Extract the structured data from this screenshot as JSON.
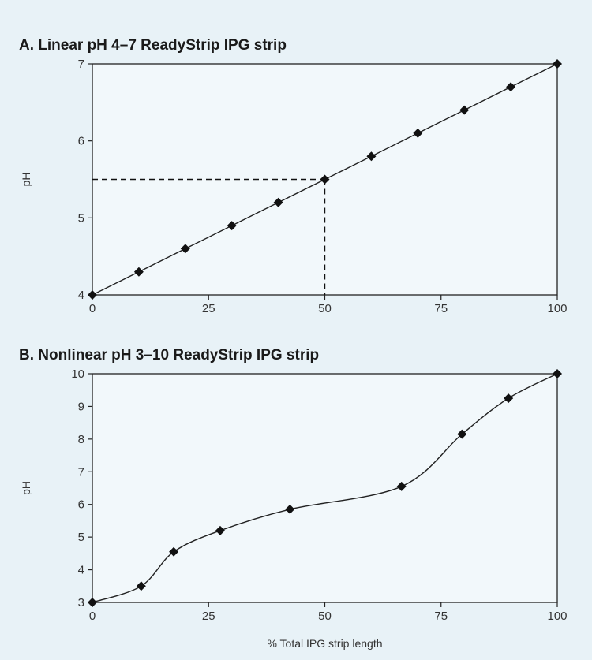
{
  "colors": {
    "background": "#e8f2f7",
    "plot_background": "#f2f8fb",
    "frame": "#222222",
    "line": "#222222",
    "marker": "#111111",
    "dash": "#111111"
  },
  "chart_data": [
    {
      "type": "line",
      "title": "A. Linear pH 4–7 ReadyStrip IPG strip",
      "xlabel": "",
      "ylabel": "pH",
      "xlim": [
        0,
        100
      ],
      "ylim": [
        4,
        7
      ],
      "xticks": [
        0,
        25,
        50,
        75,
        100
      ],
      "yticks": [
        4,
        5,
        6,
        7
      ],
      "grid": false,
      "smooth": false,
      "x": [
        0,
        10,
        20,
        30,
        40,
        50,
        60,
        70,
        80,
        90,
        100
      ],
      "y": [
        4.0,
        4.3,
        4.6,
        4.9,
        5.2,
        5.5,
        5.8,
        6.1,
        6.4,
        6.7,
        7.0
      ],
      "marker": "diamond",
      "reference_point": {
        "x": 50,
        "y": 5.5,
        "style": "dashed"
      }
    },
    {
      "type": "line",
      "title": "B. Nonlinear pH 3–10 ReadyStrip IPG strip",
      "xlabel": "% Total IPG strip length",
      "ylabel": "pH",
      "xlim": [
        0,
        100
      ],
      "ylim": [
        3,
        10
      ],
      "xticks": [
        0,
        25,
        50,
        75,
        100
      ],
      "yticks": [
        3,
        4,
        5,
        6,
        7,
        8,
        9,
        10
      ],
      "grid": false,
      "smooth": true,
      "x": [
        0,
        10.5,
        17.5,
        27.5,
        42.5,
        66.5,
        79.5,
        89.5,
        100
      ],
      "y": [
        3.0,
        3.5,
        4.55,
        5.2,
        5.85,
        6.55,
        8.15,
        9.25,
        10.0
      ],
      "marker": "diamond"
    }
  ]
}
